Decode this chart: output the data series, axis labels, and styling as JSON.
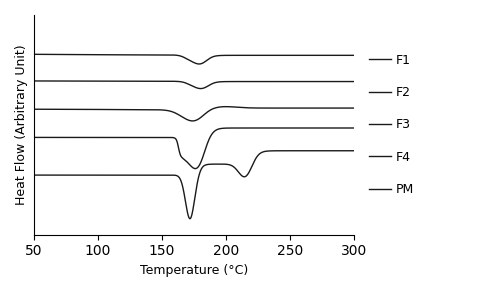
{
  "x_min": 50,
  "x_max": 300,
  "xlabel": "Temperature (°C)",
  "ylabel": "Heat Flow (Arbitrary Unit)",
  "xticks": [
    50,
    100,
    150,
    200,
    250,
    300
  ],
  "line_color": "#1a1a1a",
  "legend_labels": [
    "F1",
    "F2",
    "F3",
    "F4",
    "PM"
  ],
  "offsets": [
    8.5,
    6.8,
    5.0,
    3.2,
    0.8
  ],
  "figsize": [
    5.0,
    2.92
  ],
  "dpi": 100
}
